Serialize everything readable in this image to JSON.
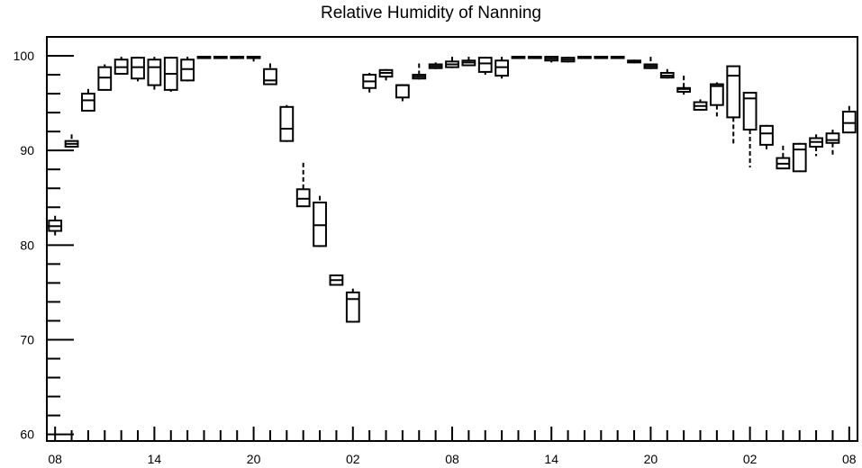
{
  "chart_data": {
    "type": "box",
    "title": "Relative Humidity of Nanning",
    "xlabel": "",
    "ylabel": "",
    "ylim": [
      59.3,
      102
    ],
    "y_ticks": [
      60,
      70,
      80,
      90,
      100
    ],
    "y_tick_labels": [
      "60",
      "70",
      "80",
      "90",
      "100"
    ],
    "x_tick_labels": [
      "08",
      "14",
      "20",
      "02",
      "08",
      "14",
      "20",
      "02",
      "08"
    ],
    "x_tick_hours": [
      0,
      6,
      12,
      18,
      24,
      30,
      36,
      42,
      48
    ],
    "x_hour_range": [
      -0.5,
      48.5
    ],
    "grid": false,
    "legend": "none",
    "boxes": [
      {
        "hour": 0,
        "min": 81.0,
        "q1": 81.5,
        "median": 82.0,
        "q3": 82.6,
        "max": 83.1
      },
      {
        "hour": 1,
        "min": 90.3,
        "q1": 90.4,
        "median": 90.7,
        "q3": 91.0,
        "max": 91.7
      },
      {
        "hour": 2,
        "min": 94.2,
        "q1": 94.2,
        "median": 95.3,
        "q3": 96.0,
        "max": 96.5
      },
      {
        "hour": 3,
        "min": 96.4,
        "q1": 96.4,
        "median": 97.7,
        "q3": 98.8,
        "max": 99.1
      },
      {
        "hour": 4,
        "min": 98.1,
        "q1": 98.1,
        "median": 98.8,
        "q3": 99.6,
        "max": 99.9
      },
      {
        "hour": 5,
        "min": 97.3,
        "q1": 97.6,
        "median": 98.8,
        "q3": 99.8,
        "max": 99.9
      },
      {
        "hour": 6,
        "min": 96.2,
        "q1": 96.9,
        "median": 98.8,
        "q3": 99.6,
        "max": 99.9
      },
      {
        "hour": 7,
        "min": 96.2,
        "q1": 96.4,
        "median": 98.1,
        "q3": 99.8,
        "max": 99.9
      },
      {
        "hour": 8,
        "min": 97.3,
        "q1": 97.4,
        "median": 98.6,
        "q3": 99.6,
        "max": 99.9
      },
      {
        "hour": 9,
        "min": 99.7,
        "q1": 99.8,
        "median": 99.9,
        "q3": 99.9,
        "max": 99.9
      },
      {
        "hour": 10,
        "min": 99.9,
        "q1": 99.9,
        "median": 99.9,
        "q3": 99.9,
        "max": 99.9
      },
      {
        "hour": 11,
        "min": 99.9,
        "q1": 99.9,
        "median": 99.9,
        "q3": 99.9,
        "max": 99.9
      },
      {
        "hour": 12,
        "min": 99.4,
        "q1": 99.8,
        "median": 99.9,
        "q3": 99.9,
        "max": 99.9
      },
      {
        "hour": 13,
        "min": 97.0,
        "q1": 97.0,
        "median": 97.4,
        "q3": 98.6,
        "max": 99.2
      },
      {
        "hour": 14,
        "min": 90.9,
        "q1": 91.0,
        "median": 92.3,
        "q3": 94.6,
        "max": 94.8
      },
      {
        "hour": 15,
        "min": 84.1,
        "q1": 84.1,
        "median": 84.9,
        "q3": 85.9,
        "max": 88.7
      },
      {
        "hour": 16,
        "min": 79.8,
        "q1": 79.9,
        "median": 82.1,
        "q3": 84.5,
        "max": 85.2
      },
      {
        "hour": 17,
        "min": 75.8,
        "q1": 75.8,
        "median": 76.3,
        "q3": 76.8,
        "max": 76.9
      },
      {
        "hour": 18,
        "min": 71.9,
        "q1": 71.9,
        "median": 74.3,
        "q3": 75.0,
        "max": 75.4
      },
      {
        "hour": 19,
        "min": 95.9,
        "q1": 96.6,
        "median": 97.3,
        "q3": 98.0,
        "max": 98.2
      },
      {
        "hour": 20,
        "min": 97.4,
        "q1": 97.8,
        "median": 98.2,
        "q3": 98.5,
        "max": 98.6
      },
      {
        "hour": 21,
        "min": 95.2,
        "q1": 95.6,
        "median": 96.9,
        "q3": 96.9,
        "max": 97.0
      },
      {
        "hour": 22,
        "min": 97.5,
        "q1": 97.6,
        "median": 97.8,
        "q3": 98.0,
        "max": 99.2
      },
      {
        "hour": 23,
        "min": 98.6,
        "q1": 98.7,
        "median": 98.9,
        "q3": 99.1,
        "max": 99.3
      },
      {
        "hour": 24,
        "min": 98.7,
        "q1": 98.8,
        "median": 99.1,
        "q3": 99.4,
        "max": 99.9
      },
      {
        "hour": 25,
        "min": 99.0,
        "q1": 99.0,
        "median": 99.3,
        "q3": 99.5,
        "max": 99.9
      },
      {
        "hour": 26,
        "min": 98.0,
        "q1": 98.3,
        "median": 99.2,
        "q3": 99.8,
        "max": 99.9
      },
      {
        "hour": 27,
        "min": 97.6,
        "q1": 97.9,
        "median": 98.8,
        "q3": 99.5,
        "max": 99.9
      },
      {
        "hour": 28,
        "min": 99.7,
        "q1": 99.8,
        "median": 99.9,
        "q3": 99.9,
        "max": 99.9
      },
      {
        "hour": 29,
        "min": 99.9,
        "q1": 99.9,
        "median": 99.9,
        "q3": 99.9,
        "max": 99.9
      },
      {
        "hour": 30,
        "min": 99.3,
        "q1": 99.5,
        "median": 99.7,
        "q3": 99.9,
        "max": 99.9
      },
      {
        "hour": 31,
        "min": 99.3,
        "q1": 99.4,
        "median": 99.6,
        "q3": 99.8,
        "max": 99.9
      },
      {
        "hour": 32,
        "min": 99.9,
        "q1": 99.9,
        "median": 99.9,
        "q3": 99.9,
        "max": 99.9
      },
      {
        "hour": 33,
        "min": 99.9,
        "q1": 99.9,
        "median": 99.9,
        "q3": 99.9,
        "max": 99.9
      },
      {
        "hour": 34,
        "min": 99.8,
        "q1": 99.8,
        "median": 99.9,
        "q3": 99.9,
        "max": 99.9
      },
      {
        "hour": 35,
        "min": 99.2,
        "q1": 99.3,
        "median": 99.4,
        "q3": 99.5,
        "max": 99.6
      },
      {
        "hour": 36,
        "min": 98.6,
        "q1": 98.7,
        "median": 98.9,
        "q3": 99.1,
        "max": 99.9
      },
      {
        "hour": 37,
        "min": 97.6,
        "q1": 97.7,
        "median": 97.9,
        "q3": 98.2,
        "max": 98.6
      },
      {
        "hour": 38,
        "min": 95.9,
        "q1": 96.2,
        "median": 96.5,
        "q3": 96.6,
        "max": 97.9
      },
      {
        "hour": 39,
        "min": 94.2,
        "q1": 94.3,
        "median": 94.7,
        "q3": 95.1,
        "max": 95.4
      },
      {
        "hour": 40,
        "min": 93.6,
        "q1": 94.8,
        "median": 96.8,
        "q3": 97.0,
        "max": 97.2
      },
      {
        "hour": 41,
        "min": 90.5,
        "q1": 93.5,
        "median": 97.9,
        "q3": 98.9,
        "max": 98.9
      },
      {
        "hour": 42,
        "min": 88.2,
        "q1": 92.2,
        "median": 95.5,
        "q3": 96.1,
        "max": 96.2
      },
      {
        "hour": 43,
        "min": 90.0,
        "q1": 90.6,
        "median": 91.8,
        "q3": 92.6,
        "max": 92.7
      },
      {
        "hour": 44,
        "min": 88.1,
        "q1": 88.1,
        "median": 88.6,
        "q3": 89.2,
        "max": 90.5
      },
      {
        "hour": 45,
        "min": 87.8,
        "q1": 87.8,
        "median": 90.1,
        "q3": 90.7,
        "max": 90.8
      },
      {
        "hour": 46,
        "min": 89.4,
        "q1": 90.4,
        "median": 90.9,
        "q3": 91.3,
        "max": 91.7
      },
      {
        "hour": 47,
        "min": 89.4,
        "q1": 90.8,
        "median": 91.1,
        "q3": 91.8,
        "max": 92.2
      },
      {
        "hour": 48,
        "min": 91.9,
        "q1": 91.9,
        "median": 92.9,
        "q3": 94.1,
        "max": 94.7
      }
    ]
  }
}
